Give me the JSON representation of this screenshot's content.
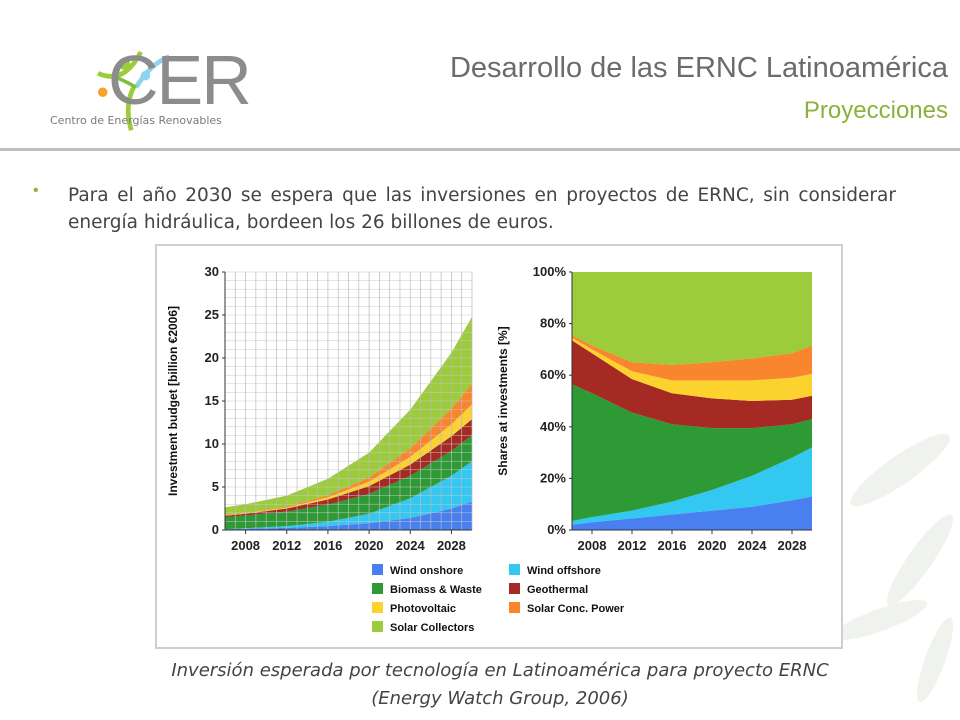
{
  "header": {
    "logo_text": "CER",
    "logo_subtitle": "Centro de Energías Renovables",
    "title": "Desarrollo de las ERNC Latinoamérica",
    "subtitle": "Proyecciones"
  },
  "bullet": "Para el año 2030 se espera que las inversiones en proyectos de ERNC, sin considerar energía hidráulica, bordeen los 26 billones de euros.",
  "caption": {
    "line1": "Inversión esperada por tecnología en Latinoamérica para proyecto ERNC",
    "line2": "(Energy Watch Group, 2006)"
  },
  "colors": {
    "accent": "#8db23a",
    "title": "#6b6b6b",
    "Wind onshore": "#4a7ff0",
    "Wind offshore": "#33c8f2",
    "Biomass & Waste": "#2e9a35",
    "Geothermal": "#a52a23",
    "Photovoltaic": "#fbd22e",
    "Solar Conc. Power": "#f9852e",
    "Solar Collectors": "#9ccc3b"
  },
  "chart_data": [
    {
      "type": "area",
      "stacked": true,
      "ylabel": "Investment budget [billion €2006]",
      "xlabel": "",
      "x": [
        2006,
        2008,
        2012,
        2016,
        2020,
        2024,
        2028,
        2030
      ],
      "xticks": [
        "2008",
        "2012",
        "2016",
        "2020",
        "2024",
        "2028"
      ],
      "yticks": [
        "0",
        "5",
        "10",
        "15",
        "20",
        "25",
        "30"
      ],
      "ylim": [
        0,
        30
      ],
      "grid": true,
      "series": [
        {
          "name": "Wind onshore",
          "values": [
            0.1,
            0.15,
            0.25,
            0.45,
            0.8,
            1.4,
            2.5,
            3.3
          ]
        },
        {
          "name": "Wind offshore",
          "values": [
            0.0,
            0.05,
            0.2,
            0.5,
            1.1,
            2.3,
            3.8,
            4.7
          ]
        },
        {
          "name": "Biomass & Waste",
          "values": [
            1.4,
            1.5,
            1.7,
            2.0,
            2.3,
            2.6,
            2.9,
            3.0
          ]
        },
        {
          "name": "Geothermal",
          "values": [
            0.15,
            0.2,
            0.35,
            0.6,
            0.9,
            1.3,
            1.7,
            1.9
          ]
        },
        {
          "name": "Photovoltaic",
          "values": [
            0.05,
            0.05,
            0.1,
            0.25,
            0.5,
            0.9,
            1.4,
            1.7
          ]
        },
        {
          "name": "Solar Conc. Power",
          "values": [
            0.05,
            0.05,
            0.1,
            0.25,
            0.5,
            1.0,
            1.8,
            2.4
          ]
        },
        {
          "name": "Solar Collectors",
          "values": [
            0.9,
            1.0,
            1.3,
            1.9,
            2.9,
            4.5,
            6.5,
            7.8
          ]
        }
      ]
    },
    {
      "type": "area",
      "stacked": true,
      "ylabel": "Shares at investments [%]",
      "xlabel": "",
      "x": [
        2006,
        2008,
        2012,
        2016,
        2020,
        2024,
        2028,
        2030
      ],
      "xticks": [
        "2008",
        "2012",
        "2016",
        "2020",
        "2024",
        "2028"
      ],
      "yticks": [
        "0%",
        "20%",
        "40%",
        "60%",
        "80%",
        "100%"
      ],
      "ylim": [
        0,
        100
      ],
      "grid": false,
      "series": [
        {
          "name": "Wind onshore",
          "values": [
            2,
            3,
            4.5,
            6,
            7.5,
            9,
            11.5,
            13
          ]
        },
        {
          "name": "Wind offshore",
          "values": [
            1.5,
            2,
            3,
            5,
            8,
            12,
            16.5,
            19
          ]
        },
        {
          "name": "Biomass & Waste",
          "values": [
            53,
            48,
            38,
            30,
            24,
            18.5,
            13,
            11
          ]
        },
        {
          "name": "Geothermal",
          "values": [
            17,
            15.5,
            13,
            12,
            11.5,
            10.5,
            9.5,
            9
          ]
        },
        {
          "name": "Photovoltaic",
          "values": [
            1,
            1.5,
            3,
            5,
            7,
            8,
            8.5,
            8.5
          ]
        },
        {
          "name": "Solar Conc. Power",
          "values": [
            1,
            1.5,
            3.5,
            6,
            7,
            8.5,
            9.5,
            11
          ]
        },
        {
          "name": "Solar Collectors",
          "values": [
            24.5,
            28.5,
            35,
            36,
            35,
            33.5,
            31.5,
            28.5
          ]
        }
      ]
    }
  ],
  "legend": [
    {
      "name": "Wind onshore",
      "color": "#4a7ff0"
    },
    {
      "name": "Wind offshore",
      "color": "#33c8f2"
    },
    {
      "name": "Biomass & Waste",
      "color": "#2e9a35"
    },
    {
      "name": "Geothermal",
      "color": "#a52a23"
    },
    {
      "name": "Photovoltaic",
      "color": "#fbd22e"
    },
    {
      "name": "Solar Conc. Power",
      "color": "#f9852e"
    },
    {
      "name": "Solar Collectors",
      "color": "#9ccc3b"
    }
  ]
}
